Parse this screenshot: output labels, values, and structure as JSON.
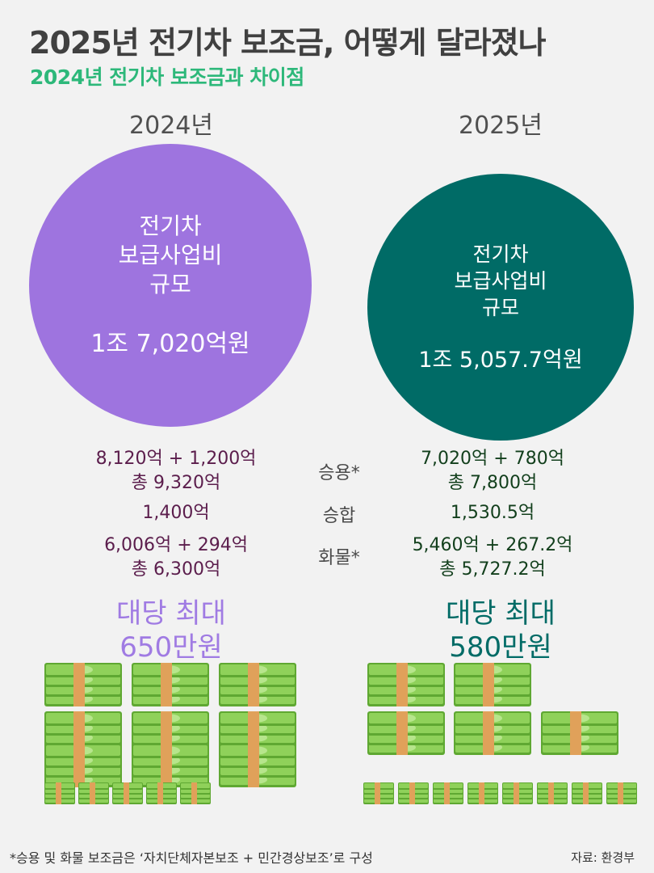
{
  "header": {
    "title": "2025년 전기차 보조금, 어떻게 달라졌나",
    "subtitle": "2024년 전기차 보조금과 차이점"
  },
  "years": {
    "y2024": {
      "label": "2024년",
      "circle_line1": "전기차",
      "circle_line2": "보급사업비",
      "circle_line3": "규모",
      "circle_amount": "1조 7,020억원",
      "passenger_line1": "8,120억 + 1,200억",
      "passenger_line2": "총 9,320억",
      "bus": "1,400억",
      "truck_line1": "6,006억 + 294억",
      "truck_line2": "총 6,300억",
      "max_line1": "대당 최대",
      "max_line2": "650만원"
    },
    "y2025": {
      "label": "2025년",
      "circle_line1": "전기차",
      "circle_line2": "보급사업비",
      "circle_line3": "규모",
      "circle_amount": "1조 5,057.7억원",
      "passenger_line1": "7,020억 + 780억",
      "passenger_line2": "총 7,800억",
      "bus": "1,530.5억",
      "truck_line1": "5,460억 + 267.2억",
      "truck_line2": "총 5,727.2억",
      "max_line1": "대당 최대",
      "max_line2": "580만원"
    }
  },
  "categories": {
    "passenger": "승용*",
    "bus": "승합",
    "truck": "화물*"
  },
  "footer": {
    "footnote": "*승용 및 화물 보조금은 ‘자치단체자본보조 + 민간경상보조’로 구성",
    "source": "자료: 환경부"
  },
  "colors": {
    "accent_2024": "#9e74df",
    "accent_2025": "#006b66",
    "subtitle": "#2db87a",
    "money_green": "#7bc043",
    "money_band": "#e0a15a"
  },
  "illustrations": {
    "money_icon": "cash-stack-icon",
    "large_stacks_2024": 9,
    "small_stacks_2024": 5,
    "large_stacks_2025": 5,
    "small_stacks_2025": 8
  }
}
